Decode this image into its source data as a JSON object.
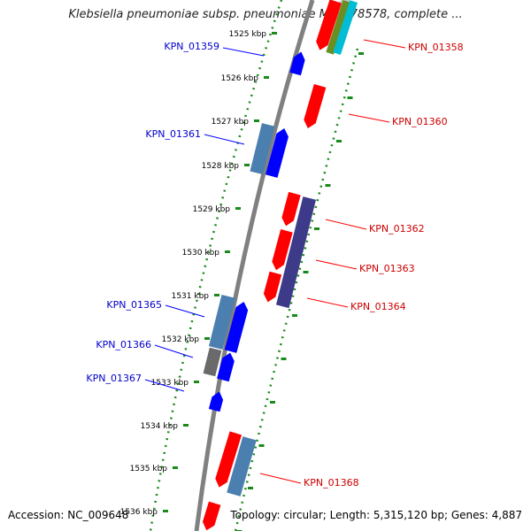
{
  "title": "Klebsiella pneumoniae subsp. pneumoniae MGH 78578, complete ...",
  "footer": {
    "accession": "Accession: NC_009648",
    "topology": "Topology: circular; Length: 5,315,120 bp; Genes: 4,887"
  },
  "ticks": [
    "1525 kbp",
    "1526 kbp",
    "1527 kbp",
    "1528 kbp",
    "1529 kbp",
    "1530 kbp",
    "1531 kbp",
    "1532 kbp",
    "1533 kbp",
    "1534 kbp",
    "1535 kbp",
    "1536 kbp"
  ],
  "colors": {
    "forward": "#0000ff",
    "reverse": "#ff0000",
    "forward_label": "#0000cc",
    "reverse_label": "#cc0000",
    "cds_steel": "#4a7fb0",
    "cds_purple": "#3d3a8a",
    "cds_gray": "#6a6a6a",
    "scale_dots": "#1a8a1a",
    "backbone": "#808080"
  },
  "genes_left": [
    {
      "label": "KPN_01359"
    },
    {
      "label": "KPN_01361"
    },
    {
      "label": "KPN_01365"
    },
    {
      "label": "KPN_01366"
    },
    {
      "label": "KPN_01367"
    }
  ],
  "genes_right": [
    {
      "label": "KPN_01358"
    },
    {
      "label": "KPN_01360"
    },
    {
      "label": "KPN_01362"
    },
    {
      "label": "KPN_01363"
    },
    {
      "label": "KPN_01364"
    },
    {
      "label": "KPN_01368"
    }
  ]
}
